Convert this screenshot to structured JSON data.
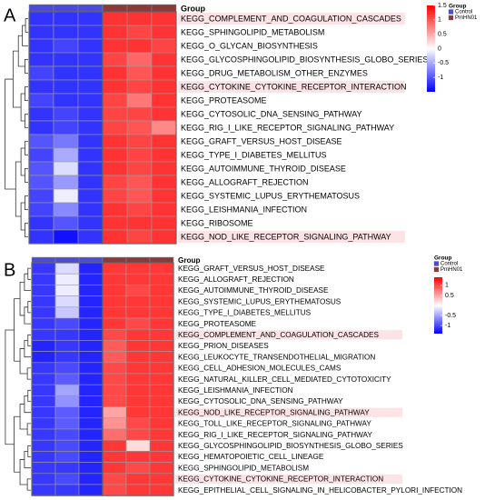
{
  "chart_data": [
    {
      "type": "heatmap",
      "panel": "A",
      "annotation_title": "Group",
      "legend_title": "Group",
      "groups": [
        {
          "name": "Control",
          "color": "#4b4bd6"
        },
        {
          "name": "PmHN01",
          "color": "#8b3a3a"
        }
      ],
      "column_group": [
        0,
        0,
        0,
        1,
        1,
        1
      ],
      "colors": [
        "#0000ff",
        "#ffffff",
        "#ff0000"
      ],
      "clim": [
        -1.5,
        1.5
      ],
      "colorbar_ticks": [
        1.5,
        1,
        0.5,
        0,
        -0.5,
        -1
      ],
      "rows": [
        "KEGG_COMPLEMENT_AND_COAGULATION_CASCADES",
        "KEGG_SPHINGOLIPID_METABOLISM",
        "KEGG_O_GLYCAN_BIOSYNTHESIS",
        "KEGG_GLYCOSPHINGOLIPID_BIOSYNTHESIS_GLOBO_SERIES",
        "KEGG_DRUG_METABOLISM_OTHER_ENZYMES",
        "KEGG_CYTOKINE_CYTOKINE_RECEPTOR_INTERACTION",
        "KEGG_PROTEASOME",
        "KEGG_CYTOSOLIC_DNA_SENSING_PATHWAY",
        "KEGG_RIG_I_LIKE_RECEPTOR_SIGNALING_PATHWAY",
        "KEGG_GRAFT_VERSUS_HOST_DISEASE",
        "KEGG_TYPE_I_DIABETES_MELLITUS",
        "KEGG_AUTOIMMUNE_THYROID_DISEASE",
        "KEGG_ALLOGRAFT_REJECTION",
        "KEGG_SYSTEMIC_LUPUS_ERYTHEMATOSUS",
        "KEGG_LEISHMANIA_INFECTION",
        "KEGG_RIBOSOME",
        "KEGG_NOD_LIKE_RECEPTOR_SIGNALING_PATHWAY"
      ],
      "label_colors": [
        "#d62728",
        "#000000",
        "#000000",
        "#000000",
        "#000000",
        "#d62728",
        "#000000",
        "#000000",
        "#000000",
        "#000000",
        "#000000",
        "#000000",
        "#000000",
        "#000000",
        "#000000",
        "#000000",
        "#d62728"
      ],
      "values": [
        [
          -1.2,
          -1.2,
          -1.2,
          1.2,
          1.2,
          1.2
        ],
        [
          -1.2,
          -1.2,
          -1.2,
          1.2,
          1.1,
          1.2
        ],
        [
          -1.2,
          -1.1,
          -1.2,
          1.2,
          1.2,
          1.1
        ],
        [
          -1.2,
          -1.2,
          -1.2,
          1.1,
          0.9,
          1.2
        ],
        [
          -1.1,
          -1.2,
          -1.2,
          1.2,
          1.0,
          1.2
        ],
        [
          -1.2,
          -1.2,
          -1.2,
          1.2,
          1.1,
          1.2
        ],
        [
          -1.1,
          -1.2,
          -1.2,
          1.1,
          0.8,
          1.2
        ],
        [
          -1.2,
          -1.1,
          -1.2,
          1.1,
          1.1,
          1.2
        ],
        [
          -1.2,
          -1.1,
          -1.2,
          1.1,
          1.0,
          0.7
        ],
        [
          -1.0,
          -0.8,
          -1.2,
          1.2,
          1.1,
          1.2
        ],
        [
          -1.1,
          -0.5,
          -1.2,
          1.2,
          1.1,
          1.2
        ],
        [
          -1.0,
          -0.2,
          -1.2,
          1.2,
          1.1,
          1.2
        ],
        [
          -1.0,
          -0.6,
          -1.2,
          1.1,
          1.0,
          1.2
        ],
        [
          -1.1,
          -0.1,
          -1.2,
          1.1,
          1.0,
          1.2
        ],
        [
          -1.1,
          -0.7,
          -1.2,
          1.2,
          1.1,
          1.2
        ],
        [
          -1.2,
          -1.0,
          -1.2,
          1.2,
          1.2,
          1.2
        ],
        [
          -1.2,
          -1.4,
          -1.2,
          1.2,
          1.1,
          1.2
        ]
      ]
    },
    {
      "type": "heatmap",
      "panel": "B",
      "annotation_title": "Group",
      "legend_title": "Group",
      "groups": [
        {
          "name": "Control",
          "color": "#4b4bd6"
        },
        {
          "name": "PmHN01",
          "color": "#8b3a3a"
        }
      ],
      "column_group": [
        0,
        0,
        0,
        1,
        1,
        1
      ],
      "colors": [
        "#0000ff",
        "#ffffff",
        "#ff0000"
      ],
      "clim": [
        -1.4,
        1.4
      ],
      "colorbar_ticks": [
        1,
        0.5,
        -0.5,
        -1
      ],
      "rows": [
        "KEGG_GRAFT_VERSUS_HOST_DISEASE",
        "KEGG_ALLOGRAFT_REJECTION",
        "KEGG_AUTOIMMUNE_THYROID_DISEASE",
        "KEGG_SYSTEMIC_LUPUS_ERYTHEMATOSUS",
        "KEGG_TYPE_I_DIABETES_MELLITUS",
        "KEGG_PROTEASOME",
        "KEGG_COMPLEMENT_AND_COAGULATION_CASCADES",
        "KEGG_PRION_DISEASES",
        "KEGG_LEUKOCYTE_TRANSENDOTHELIAL_MIGRATION",
        "KEGG_CELL_ADHESION_MOLECULES_CAMS",
        "KEGG_NATURAL_KILLER_CELL_MEDIATED_CYTOTOXICITY",
        "KEGG_LEISHMANIA_INFECTION",
        "KEGG_CYTOSOLIC_DNA_SENSING_PATHWAY",
        "KEGG_NOD_LIKE_RECEPTOR_SIGNALING_PATHWAY",
        "KEGG_TOLL_LIKE_RECEPTOR_SIGNALING_PATHWAY",
        "KEGG_RIG_I_LIKE_RECEPTOR_SIGNALING_PATHWAY",
        "KEGG_GLYCOSPHINGOLIPID_BIOSYNTHESIS_GLOBO_SERIES",
        "KEGG_HEMATOPOIETIC_CELL_LINEAGE",
        "KEGG_SPHINGOLIPID_METABOLISM",
        "KEGG_CYTOKINE_CYTOKINE_RECEPTOR_INTERACTION",
        "KEGG_EPITHELIAL_CELL_SIGNALING_IN_HELICOBACTER_PYLORI_INFECTION"
      ],
      "label_colors": [
        "#000000",
        "#000000",
        "#000000",
        "#000000",
        "#000000",
        "#000000",
        "#d62728",
        "#000000",
        "#000000",
        "#000000",
        "#000000",
        "#000000",
        "#000000",
        "#d62728",
        "#000000",
        "#000000",
        "#000000",
        "#000000",
        "#000000",
        "#d62728",
        "#000000"
      ],
      "values": [
        [
          -1.1,
          -0.2,
          -1.2,
          1.1,
          1.1,
          1.1
        ],
        [
          -1.1,
          -0.1,
          -1.2,
          1.1,
          1.1,
          1.1
        ],
        [
          -1.1,
          -0.1,
          -1.2,
          1.1,
          1.0,
          1.1
        ],
        [
          -1.1,
          -0.2,
          -1.2,
          1.1,
          1.1,
          1.1
        ],
        [
          -1.1,
          -0.3,
          -1.2,
          1.1,
          1.1,
          1.1
        ],
        [
          -1.1,
          -1.0,
          -1.2,
          1.1,
          1.0,
          1.1
        ],
        [
          -1.1,
          -1.1,
          -1.2,
          1.0,
          1.1,
          1.1
        ],
        [
          -1.2,
          -1.1,
          -1.2,
          0.9,
          1.1,
          1.1
        ],
        [
          -1.2,
          -1.1,
          -1.2,
          0.9,
          1.1,
          1.1
        ],
        [
          -1.1,
          -1.0,
          -1.2,
          1.0,
          1.1,
          1.1
        ],
        [
          -1.1,
          -0.9,
          -1.2,
          1.0,
          1.1,
          1.1
        ],
        [
          -1.1,
          -0.5,
          -1.2,
          1.0,
          1.1,
          1.1
        ],
        [
          -1.1,
          -0.6,
          -1.2,
          1.0,
          1.1,
          1.1
        ],
        [
          -1.1,
          -0.9,
          -1.2,
          0.5,
          1.1,
          1.1
        ],
        [
          -1.1,
          -0.9,
          -1.2,
          0.6,
          1.0,
          1.1
        ],
        [
          -1.1,
          -1.0,
          -1.2,
          0.8,
          1.0,
          1.1
        ],
        [
          -1.1,
          -1.0,
          -1.2,
          1.1,
          0.2,
          1.1
        ],
        [
          -1.1,
          -1.0,
          -1.2,
          1.1,
          1.1,
          1.1
        ],
        [
          -1.1,
          -1.1,
          -1.2,
          1.1,
          1.0,
          1.1
        ],
        [
          -1.1,
          -1.0,
          -1.2,
          1.0,
          1.1,
          1.1
        ],
        [
          -1.1,
          -1.1,
          -1.2,
          1.0,
          1.1,
          1.1
        ]
      ]
    }
  ]
}
